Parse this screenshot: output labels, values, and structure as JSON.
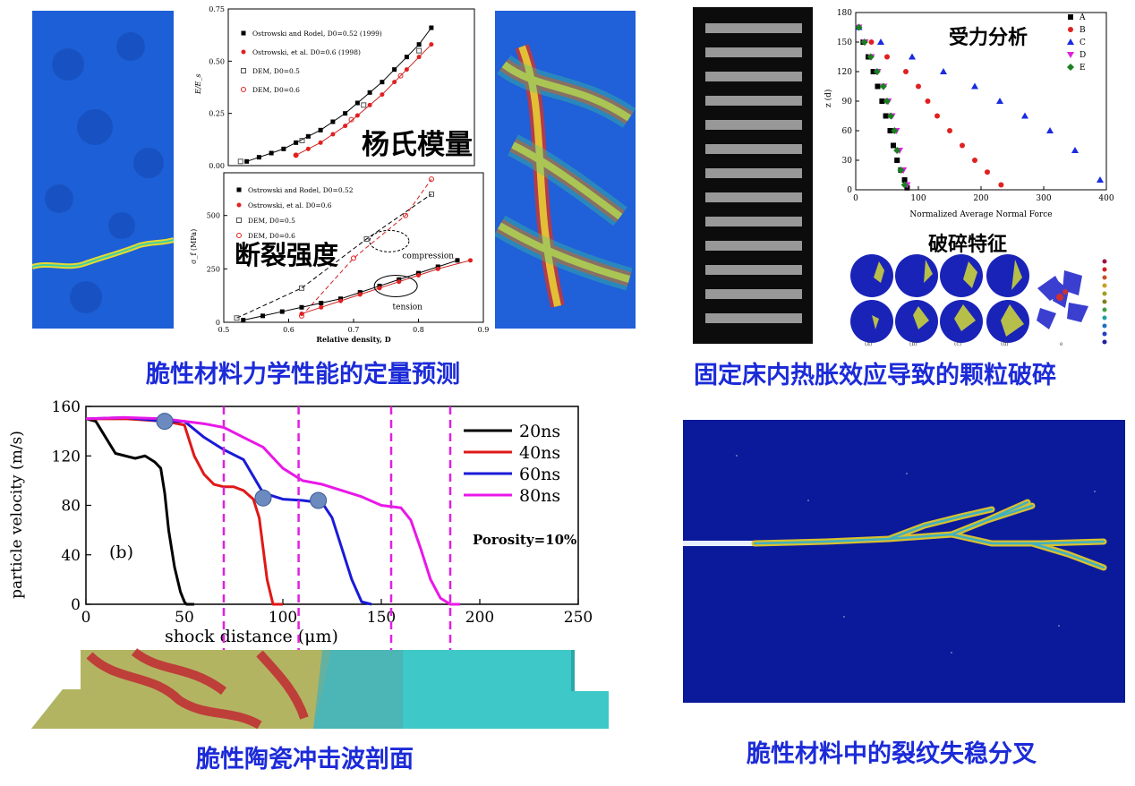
{
  "captions": {
    "q1": "脆性材料力学性能的定量预测",
    "q2": "固定床内热胀效应导致的颗粒破碎",
    "q3": "脆性陶瓷冲击波剖面",
    "q4": "脆性材料中的裂纹失稳分叉"
  },
  "labels": {
    "youngs": "杨氏模量",
    "fracture": "断裂强度",
    "force": "受力分析",
    "crush": "破碎特征"
  },
  "chart_data": [
    {
      "type": "scatter",
      "ylabel": "E/E_s",
      "ylim": [
        0,
        0.75
      ],
      "yticks": [
        "0.00",
        "0.25",
        "0.50",
        "0.75"
      ],
      "series": [
        {
          "name": "Ostrowski and Rodel, D0=0.52 (1999)",
          "color": "#000000",
          "marker": "square-filled",
          "x": [
            0.53,
            0.55,
            0.57,
            0.59,
            0.61,
            0.63,
            0.65,
            0.67,
            0.69,
            0.71,
            0.73,
            0.75,
            0.77,
            0.79,
            0.81,
            0.83
          ],
          "y": [
            0.02,
            0.04,
            0.06,
            0.08,
            0.11,
            0.14,
            0.17,
            0.21,
            0.25,
            0.3,
            0.35,
            0.4,
            0.46,
            0.52,
            0.58,
            0.66
          ]
        },
        {
          "name": "Ostrowski, et al. D0=0.6 (1998)",
          "color": "#e02020",
          "marker": "circle-filled",
          "x": [
            0.61,
            0.63,
            0.65,
            0.67,
            0.69,
            0.71,
            0.73,
            0.75,
            0.77,
            0.79,
            0.81,
            0.83
          ],
          "y": [
            0.05,
            0.08,
            0.11,
            0.15,
            0.19,
            0.24,
            0.29,
            0.34,
            0.4,
            0.46,
            0.52,
            0.58
          ]
        },
        {
          "name": "DEM, D0=0.5",
          "color": "#555555",
          "marker": "square-open",
          "x": [
            0.52,
            0.62,
            0.72,
            0.81
          ],
          "y": [
            0.02,
            0.12,
            0.29,
            0.55
          ]
        },
        {
          "name": "DEM, D0=0.6",
          "color": "#e02020",
          "marker": "circle-open",
          "x": [
            0.61,
            0.7,
            0.78
          ],
          "y": [
            0.05,
            0.22,
            0.43
          ]
        }
      ],
      "annotation": "杨氏模量"
    },
    {
      "type": "scatter",
      "xlabel": "Relative density, D",
      "ylabel": "σ_f (MPa)",
      "xlim": [
        0.5,
        0.9
      ],
      "ylim": [
        0,
        700
      ],
      "xticks": [
        "0.5",
        "0.6",
        "0.7",
        "0.8",
        "0.9"
      ],
      "yticks": [
        "0",
        "250",
        "500"
      ],
      "series": [
        {
          "name": "Ostrowski and Rodel, D0=0.52",
          "color": "#000000",
          "marker": "square-filled",
          "x": [
            0.53,
            0.56,
            0.59,
            0.62,
            0.65,
            0.68,
            0.71,
            0.74,
            0.77,
            0.8,
            0.83,
            0.86
          ],
          "y": [
            10,
            30,
            50,
            70,
            90,
            110,
            140,
            170,
            200,
            230,
            260,
            290
          ]
        },
        {
          "name": "Ostrowski, et al. D0=0.6",
          "color": "#e02020",
          "marker": "circle-filled",
          "x": [
            0.62,
            0.65,
            0.68,
            0.71,
            0.74,
            0.77,
            0.8,
            0.83,
            0.88
          ],
          "y": [
            40,
            70,
            100,
            130,
            160,
            190,
            220,
            250,
            290
          ]
        },
        {
          "name": "DEM, D0=0.5",
          "color": "#555555",
          "marker": "square-open",
          "x": [
            0.52,
            0.62,
            0.72,
            0.82
          ],
          "y": [
            20,
            160,
            390,
            600
          ]
        },
        {
          "name": "DEM, D0=0.6",
          "color": "#e02020",
          "marker": "circle-open",
          "x": [
            0.62,
            0.7,
            0.78,
            0.82
          ],
          "y": [
            30,
            300,
            500,
            670
          ]
        }
      ],
      "annotations": [
        "compression",
        "tension"
      ],
      "annotation": "断裂强度"
    },
    {
      "type": "scatter",
      "xlabel": "Normalized Average Normal Force",
      "ylabel": "z (d)",
      "xlim": [
        0,
        400
      ],
      "ylim": [
        0,
        180
      ],
      "xticks": [
        "0",
        "100",
        "200",
        "300",
        "400"
      ],
      "yticks": [
        "0",
        "30",
        "60",
        "90",
        "120",
        "150",
        "180"
      ],
      "series": [
        {
          "name": "A",
          "color": "#000000",
          "marker": "square",
          "x": [
            5,
            12,
            20,
            28,
            35,
            42,
            48,
            55,
            60,
            66,
            72,
            78,
            82
          ],
          "y": [
            165,
            150,
            135,
            120,
            105,
            90,
            75,
            60,
            45,
            30,
            20,
            10,
            2
          ]
        },
        {
          "name": "B",
          "color": "#e02020",
          "marker": "circle",
          "x": [
            5,
            25,
            50,
            80,
            100,
            115,
            130,
            150,
            170,
            190,
            210,
            232
          ],
          "y": [
            165,
            150,
            135,
            120,
            105,
            90,
            75,
            60,
            45,
            30,
            18,
            5
          ]
        },
        {
          "name": "C",
          "color": "#1a2be0",
          "marker": "triangle",
          "x": [
            5,
            40,
            90,
            140,
            190,
            230,
            270,
            310,
            350,
            390
          ],
          "y": [
            165,
            150,
            135,
            120,
            105,
            90,
            75,
            60,
            40,
            10
          ]
        },
        {
          "name": "D",
          "color": "#e020e0",
          "marker": "triangle-down",
          "x": [
            5,
            15,
            25,
            35,
            45,
            52,
            58,
            65,
            70,
            76,
            82
          ],
          "y": [
            165,
            150,
            135,
            120,
            105,
            90,
            75,
            60,
            40,
            20,
            5
          ]
        },
        {
          "name": "E",
          "color": "#1a8020",
          "marker": "diamond",
          "x": [
            5,
            14,
            24,
            34,
            44,
            50,
            56,
            62,
            66,
            72,
            78
          ],
          "y": [
            165,
            150,
            135,
            120,
            105,
            90,
            75,
            60,
            40,
            20,
            5
          ]
        }
      ],
      "annotation": "受力分析"
    },
    {
      "type": "line",
      "xlabel": "shock distance (μm)",
      "ylabel": "particle velocity (m/s)",
      "xlim": [
        0,
        250
      ],
      "ylim": [
        0,
        160
      ],
      "xticks": [
        "0",
        "50",
        "100",
        "150",
        "200",
        "250"
      ],
      "yticks": [
        "0",
        "40",
        "80",
        "120",
        "160"
      ],
      "series": [
        {
          "name": "20ns",
          "color": "#000000",
          "x": [
            0,
            5,
            10,
            15,
            20,
            25,
            30,
            35,
            38,
            40,
            42,
            45,
            48,
            50,
            51,
            55
          ],
          "y": [
            150,
            148,
            135,
            122,
            120,
            118,
            120,
            115,
            110,
            90,
            60,
            30,
            10,
            2,
            0,
            0
          ]
        },
        {
          "name": "40ns",
          "color": "#e01818",
          "x": [
            0,
            20,
            40,
            50,
            55,
            60,
            65,
            70,
            75,
            80,
            85,
            88,
            90,
            92,
            95,
            100
          ],
          "y": [
            150,
            150,
            148,
            145,
            120,
            105,
            97,
            95,
            95,
            92,
            85,
            70,
            45,
            20,
            0,
            0
          ]
        },
        {
          "name": "60ns",
          "color": "#1a1ad8",
          "x": [
            0,
            20,
            40,
            50,
            60,
            70,
            80,
            90,
            100,
            110,
            115,
            120,
            125,
            130,
            135,
            140,
            145
          ],
          "y": [
            150,
            151,
            148,
            148,
            135,
            125,
            117,
            90,
            85,
            84,
            83,
            82,
            70,
            45,
            20,
            2,
            0
          ]
        },
        {
          "name": "80ns",
          "color": "#e818e8",
          "x": [
            0,
            20,
            40,
            60,
            70,
            80,
            90,
            100,
            110,
            120,
            130,
            140,
            150,
            160,
            165,
            170,
            175,
            180,
            185,
            190
          ],
          "y": [
            150,
            151,
            150,
            146,
            143,
            135,
            127,
            110,
            100,
            97,
            92,
            87,
            80,
            78,
            68,
            45,
            20,
            5,
            0,
            0
          ]
        }
      ],
      "markers": [
        {
          "x": 40,
          "y": 148
        },
        {
          "x": 90,
          "y": 86
        },
        {
          "x": 118,
          "y": 84
        }
      ],
      "vlines": [
        70,
        108,
        155,
        185
      ],
      "annotations": [
        "(b)",
        "Porosity=10%"
      ]
    }
  ]
}
